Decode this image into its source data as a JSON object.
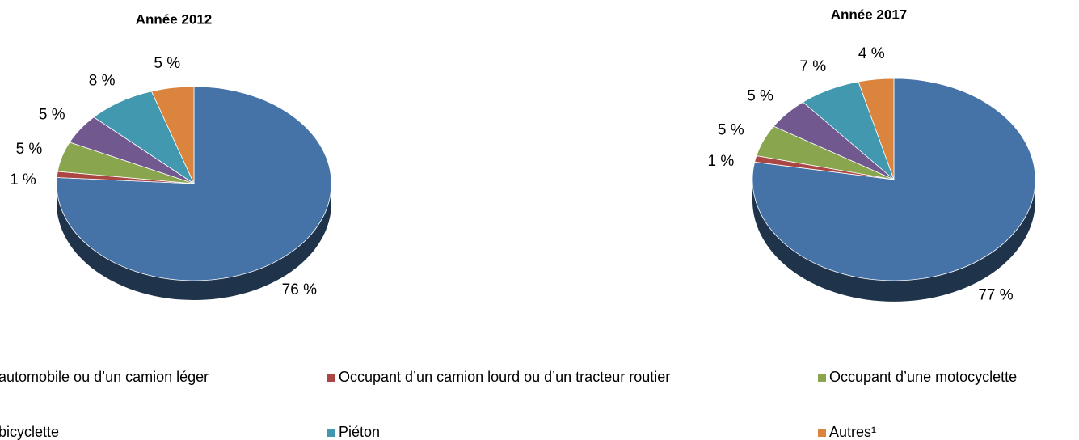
{
  "chart_data": [
    {
      "type": "pie",
      "title": "Année 2012",
      "categories": [
        "automobile ou d’un camion léger",
        "Occupant d’un camion lourd ou d’un tracteur routier",
        "Occupant d’une motocyclette",
        "bicyclette",
        "Piéton",
        "Autres¹"
      ],
      "values": [
        76,
        1,
        5,
        5,
        8,
        5
      ],
      "value_labels": [
        "76 %",
        "1 %",
        "5 %",
        "5 %",
        "8 %",
        "5 %"
      ],
      "colors": [
        "#4572a7",
        "#aa4643",
        "#89a54e",
        "#71588f",
        "#4198af",
        "#db843d"
      ]
    },
    {
      "type": "pie",
      "title": "Année 2017",
      "categories": [
        "automobile ou d’un camion léger",
        "Occupant d’un camion lourd ou d’un tracteur routier",
        "Occupant d’une motocyclette",
        "bicyclette",
        "Piéton",
        "Autres¹"
      ],
      "values": [
        77,
        1,
        5,
        5,
        7,
        4
      ],
      "value_labels": [
        "77 %",
        "1 %",
        "5 %",
        "5 %",
        "7 %",
        "4 %"
      ],
      "colors": [
        "#4572a7",
        "#aa4643",
        "#89a54e",
        "#71588f",
        "#4198af",
        "#db843d"
      ]
    }
  ]
}
